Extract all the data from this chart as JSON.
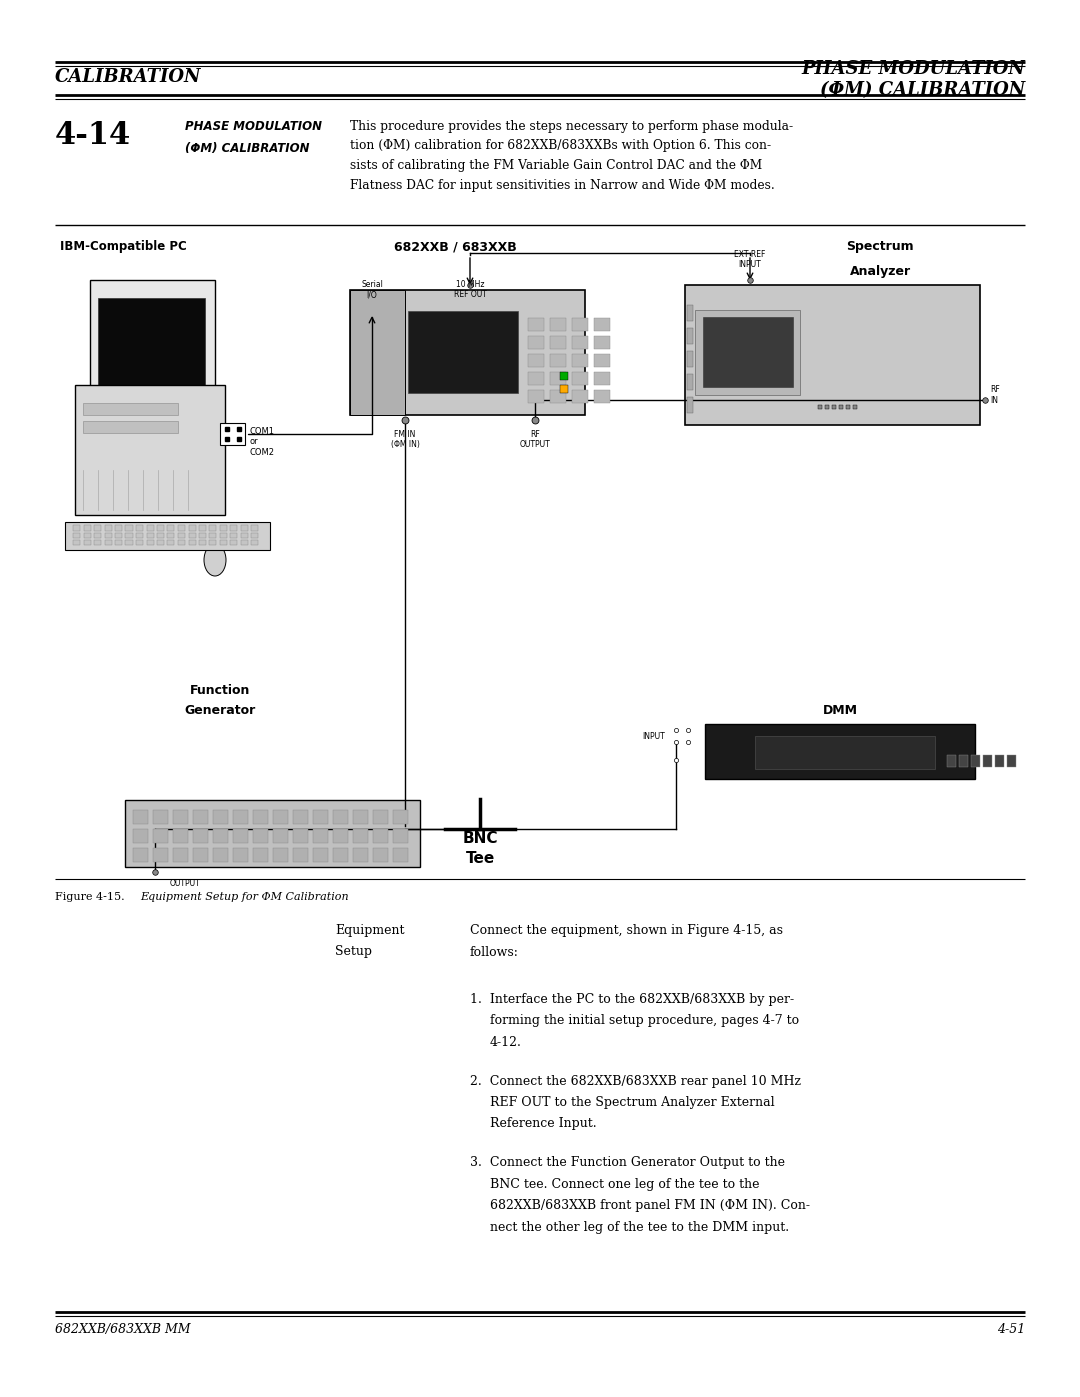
{
  "page_width": 10.8,
  "page_height": 13.97,
  "bg_color": "#ffffff",
  "header_left_text": "CALIBRATION",
  "header_right_line1": "PHASE MODULATION",
  "header_right_line2": "(ΦM) CALIBRATION",
  "section_number": "4-14",
  "section_title_line1": "PHASE MODULATION",
  "section_title_line2": "(ΦM) CALIBRATION",
  "section_body_lines": [
    "This procedure provides the steps necessary to perform phase modula-",
    "tion (ΦM) calibration for 682XXB/683XXBs with Option 6. This con-",
    "sists of calibrating the FM Variable Gain Control DAC and the ΦM",
    "Flatness DAC for input sensitivities in Narrow and Wide ΦM modes."
  ],
  "fig_label_pc": "IBM-Compatible PC",
  "fig_label_sg": "682XXB / 683XXB",
  "fig_label_sa_line1": "Spectrum",
  "fig_label_sa_line2": "Analyzer",
  "fig_label_dmm": "DMM",
  "fig_label_fg_line1": "Function",
  "fig_label_fg_line2": "Generator",
  "fig_label_bnc_line1": "BNC",
  "fig_label_bnc_line2": "Tee",
  "fig_label_com": "COM1\nor\nCOM2",
  "fig_label_serial": "Serial\nI/O",
  "fig_label_10mhz": "10 MHz\nREF OUT",
  "fig_label_ext_ref": "EXT REF\nINPUT",
  "fig_label_fm_in": "FM IN\n(ΦM IN)",
  "fig_label_rf_out": "RF\nOUTPUT",
  "fig_label_rf_in": "RF\nIN",
  "fig_label_input": "INPUT",
  "fig_label_output": "OUTPUT",
  "figure_caption_num": "Figure 4-15.",
  "figure_caption_text": "Equipment Setup for ΦM Calibration",
  "footer_left": "682XXB/683XXB MM",
  "footer_right": "4-51",
  "equip_label": "Equipment\nSetup",
  "equip_connect_line1": "Connect the equipment, shown in Figure 4-15, as",
  "equip_connect_line2": "follows:",
  "step1_lines": [
    "1.  Interface the PC to the 682XXB/683XXB by per-",
    "forming the initial setup procedure, pages 4-7 to",
    "4-12."
  ],
  "step2_lines": [
    "2.  Connect the 682XXB/683XXB rear panel 10 MHz",
    "REF OUT to the Spectrum Analyzer External",
    "Reference Input."
  ],
  "step3_lines": [
    "3.  Connect the Function Generator Output to the",
    "BNC tee. Connect one leg of the tee to the",
    "682XXB/683XXB front panel FM IN (ΦM IN). Con-",
    "nect the other leg of the tee to the DMM input."
  ]
}
